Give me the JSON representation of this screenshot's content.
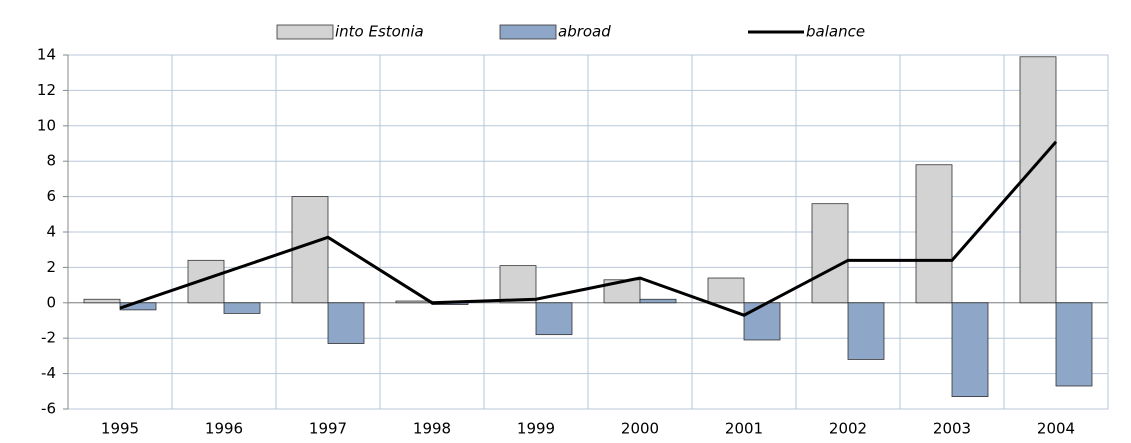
{
  "chart_data": {
    "type": "bar",
    "categories": [
      "1995",
      "1996",
      "1997",
      "1998",
      "1999",
      "2000",
      "2001",
      "2002",
      "2003",
      "2004"
    ],
    "series": [
      {
        "name": "into Estonia",
        "color": "#d3d3d3",
        "type": "bar",
        "values": [
          0.2,
          2.4,
          6.0,
          0.1,
          2.1,
          1.3,
          1.4,
          5.6,
          7.8,
          13.9
        ]
      },
      {
        "name": "abroad",
        "color": "#8ea7c9",
        "type": "bar",
        "values": [
          -0.4,
          -0.6,
          -2.3,
          -0.1,
          -1.8,
          0.2,
          -2.1,
          -3.2,
          -5.3,
          -4.7
        ]
      },
      {
        "name": "balance",
        "color": "#000000",
        "type": "line",
        "values": [
          -0.3,
          1.7,
          3.7,
          0.0,
          0.2,
          1.4,
          -0.7,
          2.4,
          2.4,
          9.1
        ]
      }
    ],
    "ylim": [
      -6,
      14
    ],
    "yticks": [
      -6,
      -4,
      -2,
      0,
      2,
      4,
      6,
      8,
      10,
      12,
      14
    ],
    "grid": true,
    "legend": "top"
  }
}
